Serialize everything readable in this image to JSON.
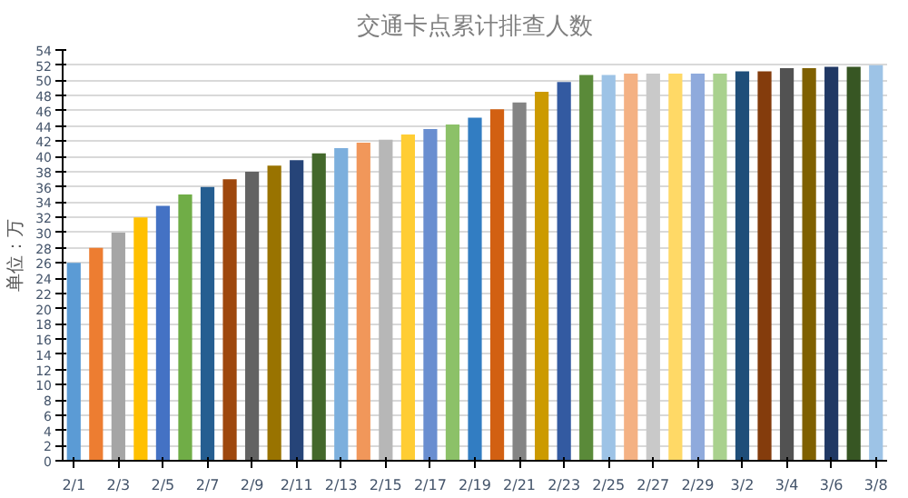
{
  "chart_data": {
    "type": "bar",
    "title": "交通卡点累计排查人数",
    "ylabel": "单位：万",
    "categories": [
      "2/1",
      null,
      "2/3",
      null,
      "2/5",
      null,
      "2/7",
      null,
      "2/9",
      null,
      "2/11",
      null,
      "2/13",
      null,
      "2/15",
      null,
      "2/17",
      null,
      "2/19",
      null,
      "2/21",
      null,
      "2/23",
      null,
      "2/25",
      null,
      "2/27",
      null,
      "2/29",
      null,
      "3/2",
      null,
      "3/4",
      null,
      "3/6",
      null,
      "3/8"
    ],
    "values": [
      26,
      28,
      30,
      32,
      33.5,
      35,
      36,
      37,
      38,
      38.8,
      39.5,
      40.4,
      41.1,
      41.8,
      42.2,
      42.9,
      43.6,
      44.2,
      45.1,
      46.2,
      47.1,
      48.5,
      49.8,
      50.7,
      50.7,
      50.9,
      50.9,
      50.9,
      50.9,
      50.9,
      51.2,
      51.2,
      51.6,
      51.6,
      51.8,
      51.8,
      52
    ],
    "colors": [
      "#5b9bd5",
      "#ed7d31",
      "#a5a5a5",
      "#ffc000",
      "#4472c4",
      "#70ad47",
      "#255e91",
      "#9e480e",
      "#636363",
      "#997300",
      "#264478",
      "#43682b",
      "#7cafdd",
      "#f1975a",
      "#b7b7b7",
      "#ffcd33",
      "#698ed0",
      "#8cc168",
      "#327dc2",
      "#d26012",
      "#848484",
      "#cc9a00",
      "#335aa1",
      "#5a8a39",
      "#9dc3e6",
      "#f4b183",
      "#c9c9c9",
      "#ffd966",
      "#8faadc",
      "#a9d18e",
      "#1f4e79",
      "#843c0c",
      "#525252",
      "#7f6000",
      "#203864",
      "#375623",
      "#9dc3e6"
    ],
    "ylim": [
      0,
      54
    ],
    "yticks": [
      0,
      2,
      4,
      6,
      8,
      10,
      12,
      14,
      16,
      18,
      20,
      22,
      24,
      26,
      28,
      30,
      32,
      34,
      36,
      38,
      40,
      42,
      44,
      46,
      48,
      50,
      52,
      54
    ],
    "grid": "y"
  }
}
